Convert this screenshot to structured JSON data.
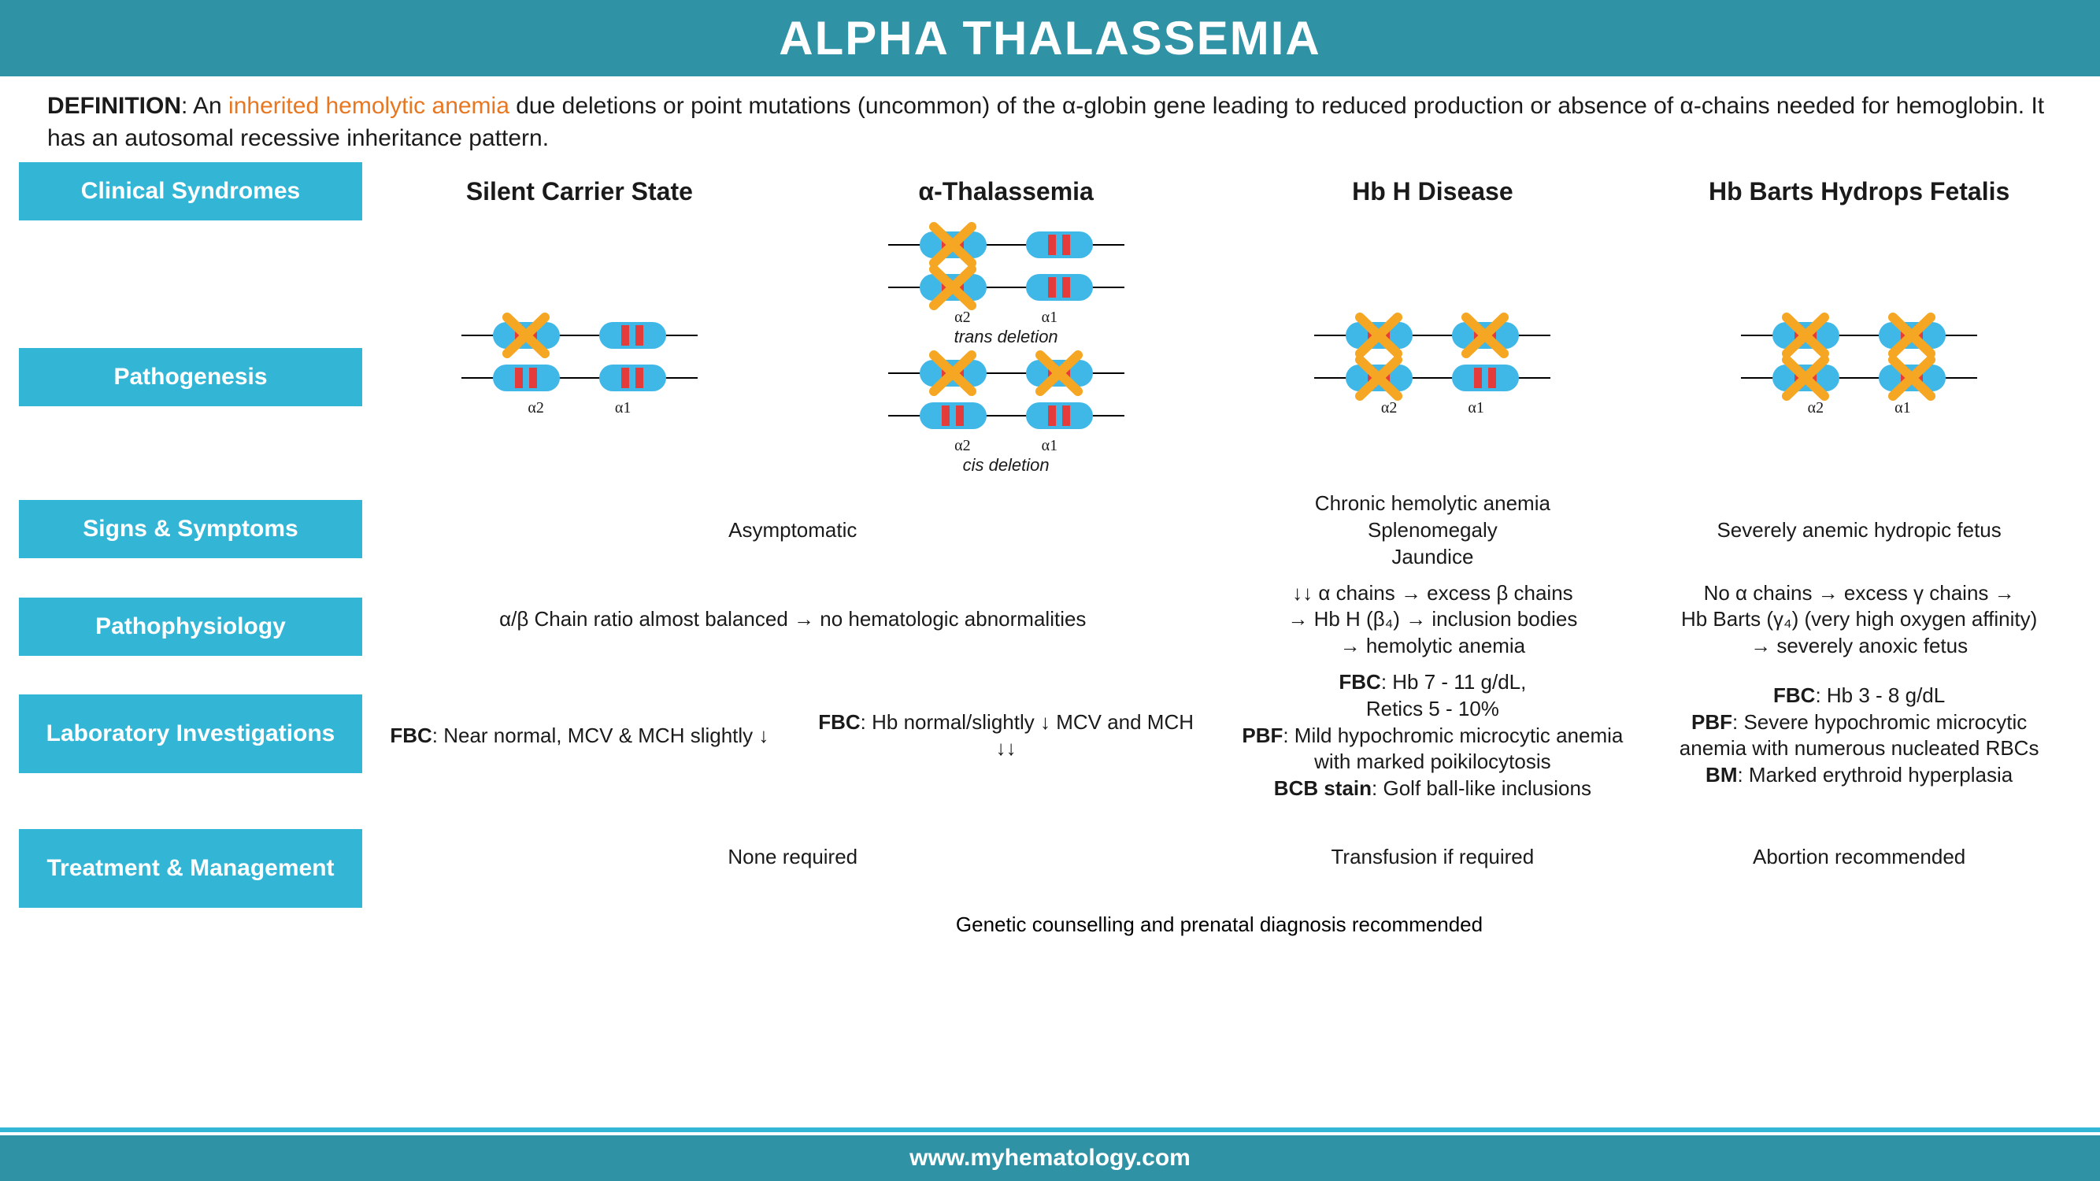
{
  "colors": {
    "header_bg": "#2f92a5",
    "rowlabel_bg": "#33b6d6",
    "orange": "#e87722",
    "gene_blue": "#3fb8e8",
    "gene_band": "#e43b3b",
    "xmark": "#f5a623",
    "text": "#1a1a1a",
    "white": "#ffffff"
  },
  "fontsizes": {
    "title": 60,
    "definition": 30,
    "rowlabel": 30,
    "colhead": 32,
    "cell": 26,
    "footer": 30,
    "gene_label": 20
  },
  "title": "ALPHA THALASSEMIA",
  "footer": "www.myhematology.com",
  "definition": {
    "label": "DEFINITION",
    "orange_text": "inherited hemolytic anemia",
    "pre": ": An ",
    "post": " due deletions or point mutations (uncommon) of the α-globin gene leading to reduced production or absence of α-chains needed for hemoglobin. It has an autosomal recessive inheritance pattern."
  },
  "row_labels": {
    "clinical": "Clinical Syndromes",
    "pathogenesis": "Pathogenesis",
    "signs": "Signs & Symptoms",
    "pathophys": "Pathophysiology",
    "lab": "Laboratory Investigations",
    "treatment": "Treatment & Management"
  },
  "columns": {
    "c1": "Silent Carrier State",
    "c2": "α-Thalassemia",
    "c3": "Hb H Disease",
    "c4": "Hb Barts Hydrops Fetalis"
  },
  "gene_labels": {
    "a2": "α2",
    "a1": "α1"
  },
  "deletion_labels": {
    "trans": "trans deletion",
    "cis": "cis deletion"
  },
  "signs": {
    "c12": "Asymptomatic",
    "c3": "Chronic hemolytic anemia\nSplenomegaly\nJaundice",
    "c4": "Severely anemic hydropic fetus"
  },
  "pathophys": {
    "c12": "α/β Chain ratio almost balanced → no hematologic abnormalities",
    "c3": "↓↓ α chains → excess β chains\n→ Hb H (β₄) → inclusion bodies\n→ hemolytic anemia",
    "c4": "No α chains → excess γ chains →\nHb Barts (γ₄) (very high oxygen affinity)\n→ severely anoxic fetus"
  },
  "lab": {
    "c1_pre": "FBC",
    "c1": ": Near normal, MCV & MCH slightly ↓",
    "c2_pre": "FBC",
    "c2": ": Hb normal/slightly ↓ MCV and MCH ↓↓",
    "c3_l1a": "FBC",
    "c3_l1b": ": Hb 7 - 11 g/dL,",
    "c3_l2": "Retics 5 - 10%",
    "c3_l3a": "PBF",
    "c3_l3b": ": Mild hypochromic microcytic anemia with marked poikilocytosis",
    "c3_l4a": "BCB stain",
    "c3_l4b": ": Golf ball-like inclusions",
    "c4_l1a": "FBC",
    "c4_l1b": ": Hb 3 - 8 g/dL",
    "c4_l2a": "PBF",
    "c4_l2b": ": Severe hypochromic microcytic anemia with numerous nucleated RBCs",
    "c4_l3a": "BM",
    "c4_l3b": ": Marked erythroid hyperplasia"
  },
  "treatment": {
    "c12": "None required",
    "c3": "Transfusion if required",
    "c4": "Abortion recommended",
    "all": "Genetic counselling and prenatal diagnosis recommended"
  },
  "pathogenesis_diagrams": {
    "c1": {
      "rows": [
        {
          "genes": [
            "x",
            "o"
          ]
        },
        {
          "genes": [
            "o",
            "o"
          ]
        }
      ]
    },
    "c2_trans": {
      "rows": [
        {
          "genes": [
            "x",
            "o"
          ]
        },
        {
          "genes": [
            "x",
            "o"
          ]
        }
      ]
    },
    "c2_cis": {
      "rows": [
        {
          "genes": [
            "x",
            "x"
          ]
        },
        {
          "genes": [
            "o",
            "o"
          ]
        }
      ]
    },
    "c3": {
      "rows": [
        {
          "genes": [
            "x",
            "x"
          ]
        },
        {
          "genes": [
            "x",
            "o"
          ]
        }
      ]
    },
    "c4": {
      "rows": [
        {
          "genes": [
            "x",
            "x"
          ]
        },
        {
          "genes": [
            "x",
            "x"
          ]
        }
      ]
    }
  }
}
